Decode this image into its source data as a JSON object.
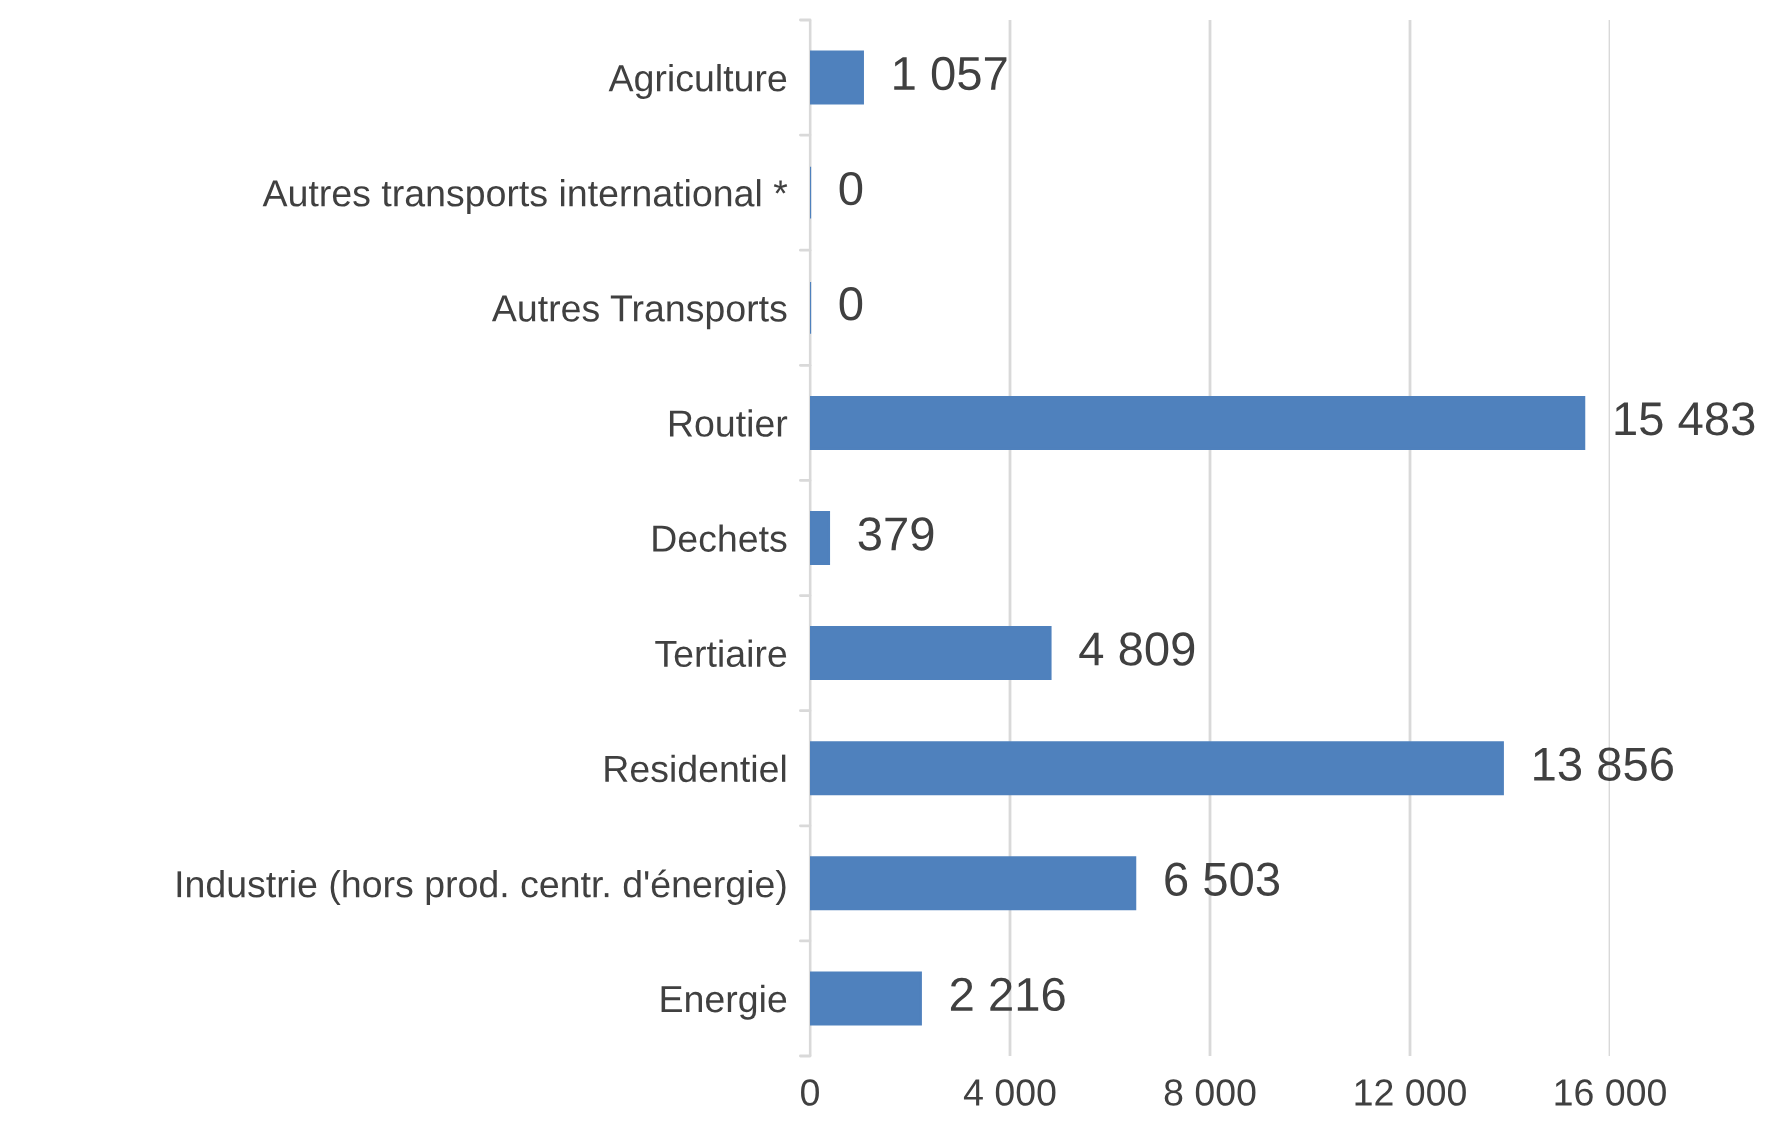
{
  "chart_data": {
    "type": "bar",
    "orientation": "horizontal",
    "categories": [
      "Agriculture",
      "Autres transports international *",
      "Autres Transports",
      "Routier",
      "Dechets",
      "Tertiaire",
      "Residentiel",
      "Industrie (hors prod. centr. d'énergie)",
      "Energie"
    ],
    "values": [
      1057,
      0,
      0,
      15483,
      379,
      4809,
      13856,
      6503,
      2216
    ],
    "value_labels": [
      "1 057",
      "0",
      "0",
      "15 483",
      "379",
      "4 809",
      "13 856",
      "6 503",
      "2 216"
    ],
    "color": "#4f81bd",
    "xlim": [
      0,
      16000
    ],
    "xticks": [
      {
        "value": 0,
        "label": "0"
      },
      {
        "value": 4000,
        "label": "4 000"
      },
      {
        "value": 8000,
        "label": "8 000"
      },
      {
        "value": 12000,
        "label": "12 000"
      },
      {
        "value": 16000,
        "label": "16 000"
      }
    ],
    "grid": "x",
    "legend": false
  }
}
